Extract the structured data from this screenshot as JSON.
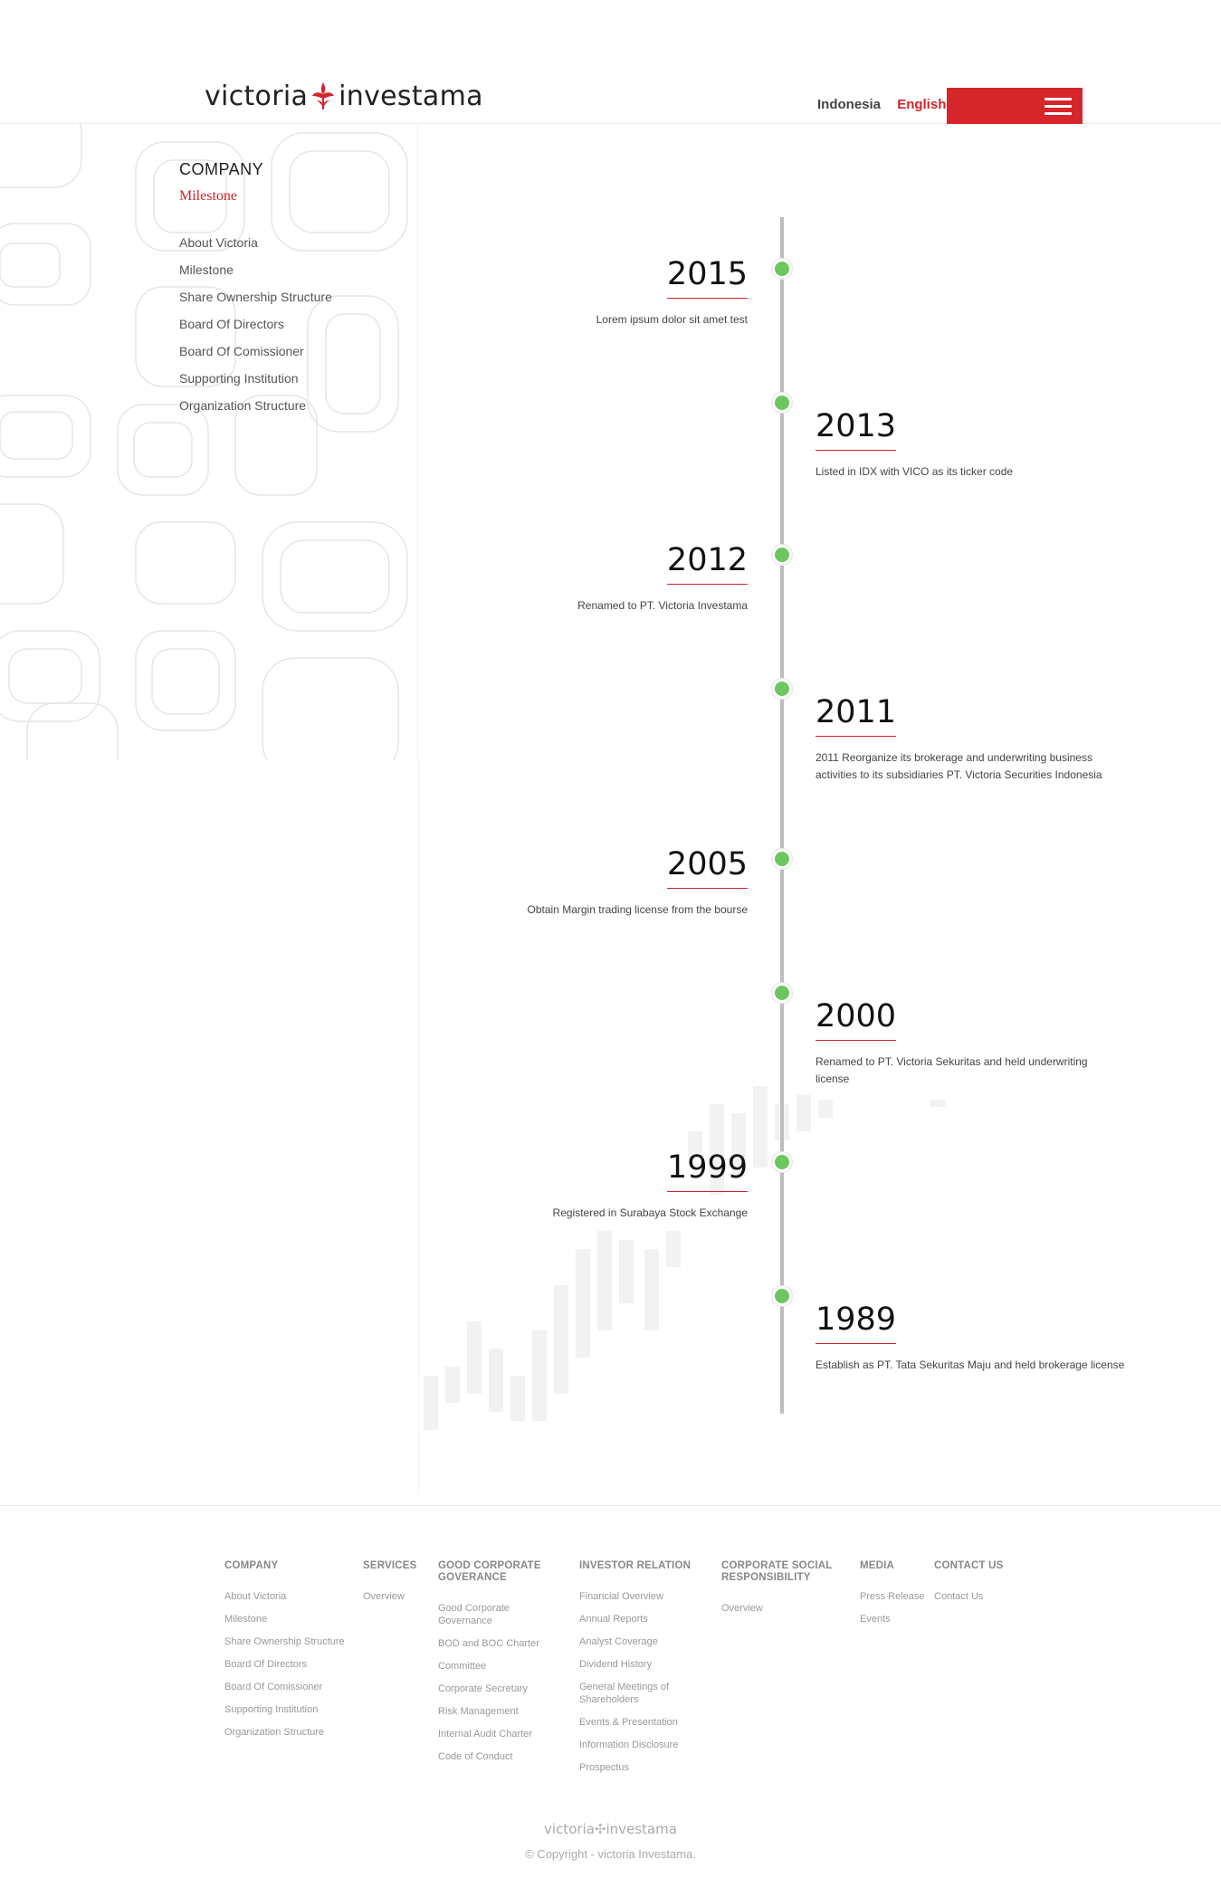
{
  "header": {
    "logo_left": "victoria",
    "logo_right": "investama",
    "lang_id": "Indonesia",
    "lang_en": "English",
    "colors": {
      "accent": "#d6252b",
      "dot": "#6cc75f"
    }
  },
  "sidebar": {
    "title": "COMPANY",
    "subtitle": "Milestone",
    "items": [
      {
        "label": "About Victoria"
      },
      {
        "label": "Milestone"
      },
      {
        "label": "Share Ownership Structure"
      },
      {
        "label": "Board Of Directors"
      },
      {
        "label": "Board Of Comissioner"
      },
      {
        "label": "Supporting Institution"
      },
      {
        "label": "Organization Structure"
      }
    ]
  },
  "timeline": [
    {
      "year": "2015",
      "text": "Lorem ipsum dolor sit amet test"
    },
    {
      "year": "2013",
      "text": "Listed in IDX with VICO as its ticker code"
    },
    {
      "year": "2012",
      "text": "Renamed to PT. Victoria Investama"
    },
    {
      "year": "2011",
      "text": "2011 Reorganize its brokerage and underwriting business activities to its subsidiaries PT. Victoria Securities Indonesia"
    },
    {
      "year": "2005",
      "text": "Obtain Margin trading license from the bourse"
    },
    {
      "year": "2000",
      "text": "Renamed to PT. Victoria Sekuritas and held underwriting license"
    },
    {
      "year": "1999",
      "text": "Registered in Surabaya Stock Exchange"
    },
    {
      "year": "1989",
      "text": "Establish as PT. Tata Sekuritas Maju and held brokerage license"
    }
  ],
  "footer": {
    "columns": [
      {
        "title": "COMPANY",
        "items": [
          "About Victoria",
          "Milestone",
          "Share Ownership Structure",
          "Board Of Directors",
          "Board Of Comissioner",
          "Supporting Institution",
          "Organization Structure"
        ]
      },
      {
        "title": "SERVICES",
        "items": [
          "Overview"
        ]
      },
      {
        "title": "GOOD CORPORATE GOVERANCE",
        "items": [
          "Good Corporate Governance",
          "BOD and BOC Charter",
          "Committee",
          "Corporate Secretary",
          "Risk Management",
          "Internal Audit Charter",
          "Code of Conduct"
        ]
      },
      {
        "title": "INVESTOR RELATION",
        "items": [
          "Financial Overview",
          "Annual Reports",
          "Analyst Coverage",
          "Dividend History",
          "General Meetings of Shareholders",
          "Events & Presentation",
          "Information Disclosure",
          "Prospectus"
        ]
      },
      {
        "title": "CORPORATE SOCIAL RESPONSIBILITY",
        "items": [
          "Overview"
        ]
      },
      {
        "title": "MEDIA",
        "items": [
          "Press Release",
          "Events"
        ]
      },
      {
        "title": "CONTACT US",
        "items": [
          "Contact Us"
        ]
      }
    ],
    "logo_left": "victoria",
    "logo_right": "investama",
    "copyright": "© Copyright - victoria Investama."
  }
}
